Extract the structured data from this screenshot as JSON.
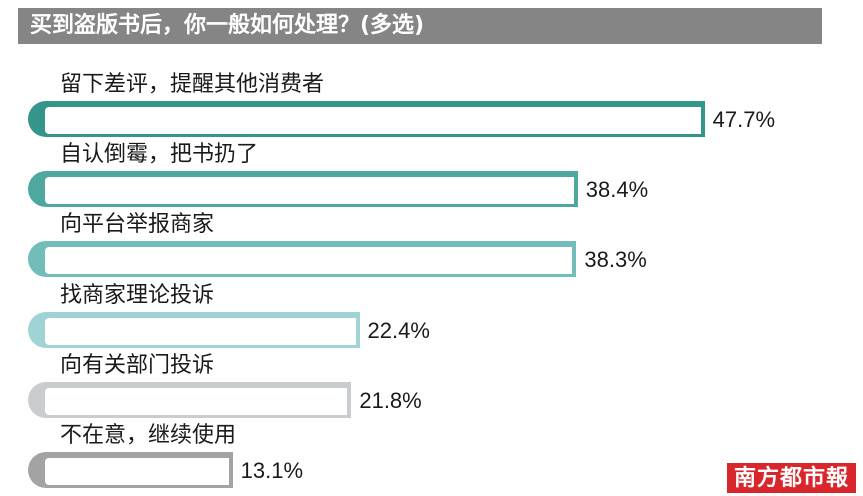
{
  "logo": "南方都市報",
  "colors": {
    "title_bar": "#858585",
    "title_text": "#ffffff",
    "logo_background": "#d9262c",
    "logo_text": "#ffffff"
  },
  "chart_data": {
    "type": "bar",
    "orientation": "horizontal",
    "title": "买到盗版书后，你一般如何处理？(多选)",
    "categories": [
      "留下差评，提醒其他消费者",
      "自认倒霉，把书扔了",
      "向平台举报商家",
      "找商家理论投诉",
      "向有关部门投诉",
      "不在意，继续使用"
    ],
    "values": [
      47.7,
      38.4,
      38.3,
      22.4,
      21.8,
      13.1
    ],
    "value_labels": [
      "47.7%",
      "38.4%",
      "38.3%",
      "22.4%",
      "21.8%",
      "13.1%"
    ],
    "colors": [
      "#36958a",
      "#4ea8a0",
      "#72bcb9",
      "#9fd3d4",
      "#c9cdcf",
      "#a3a3a3"
    ],
    "grid": false,
    "legend": "none"
  }
}
